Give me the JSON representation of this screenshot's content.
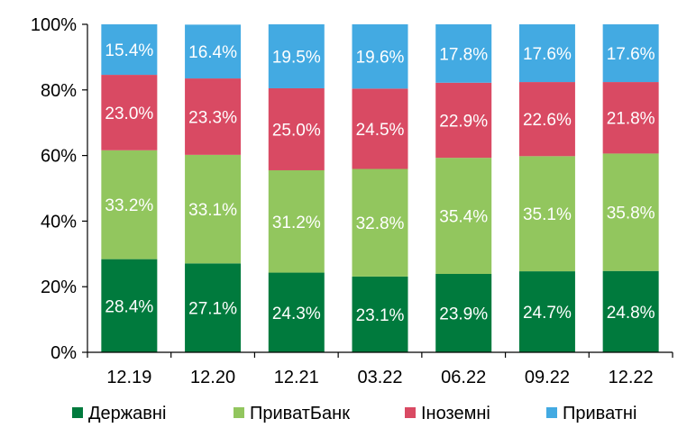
{
  "chart_data": {
    "type": "bar",
    "stacked": true,
    "categories": [
      "12.19",
      "12.20",
      "12.21",
      "03.22",
      "06.22",
      "09.22",
      "12.22"
    ],
    "series": [
      {
        "name": "Державні",
        "color": "#007a3d",
        "values": [
          28.4,
          27.1,
          24.3,
          23.1,
          23.9,
          24.7,
          24.8
        ],
        "labels": [
          "28.4%",
          "27.1%",
          "24.3%",
          "23.1%",
          "23.9%",
          "24.7%",
          "24.8%"
        ]
      },
      {
        "name": "ПриватБанк",
        "color": "#92c65e",
        "values": [
          33.2,
          33.1,
          31.2,
          32.8,
          35.4,
          35.1,
          35.8
        ],
        "labels": [
          "33.2%",
          "33.1%",
          "31.2%",
          "32.8%",
          "35.4%",
          "35.1%",
          "35.8%"
        ]
      },
      {
        "name": "Іноземні",
        "color": "#d94a63",
        "values": [
          23.0,
          23.3,
          25.0,
          24.5,
          22.9,
          22.6,
          21.8
        ],
        "labels": [
          "23.0%",
          "23.3%",
          "25.0%",
          "24.5%",
          "22.9%",
          "22.6%",
          "21.8%"
        ]
      },
      {
        "name": "Приватні",
        "color": "#43aae2",
        "values": [
          15.4,
          16.4,
          19.5,
          19.6,
          17.8,
          17.6,
          17.6
        ],
        "labels": [
          "15.4%",
          "16.4%",
          "19.5%",
          "19.6%",
          "17.8%",
          "17.6%",
          "17.6%"
        ]
      }
    ],
    "y_ticks": [
      "0%",
      "20%",
      "40%",
      "60%",
      "80%",
      "100%"
    ],
    "ylim": [
      0,
      100
    ],
    "grid": false,
    "legend_position": "bottom"
  }
}
